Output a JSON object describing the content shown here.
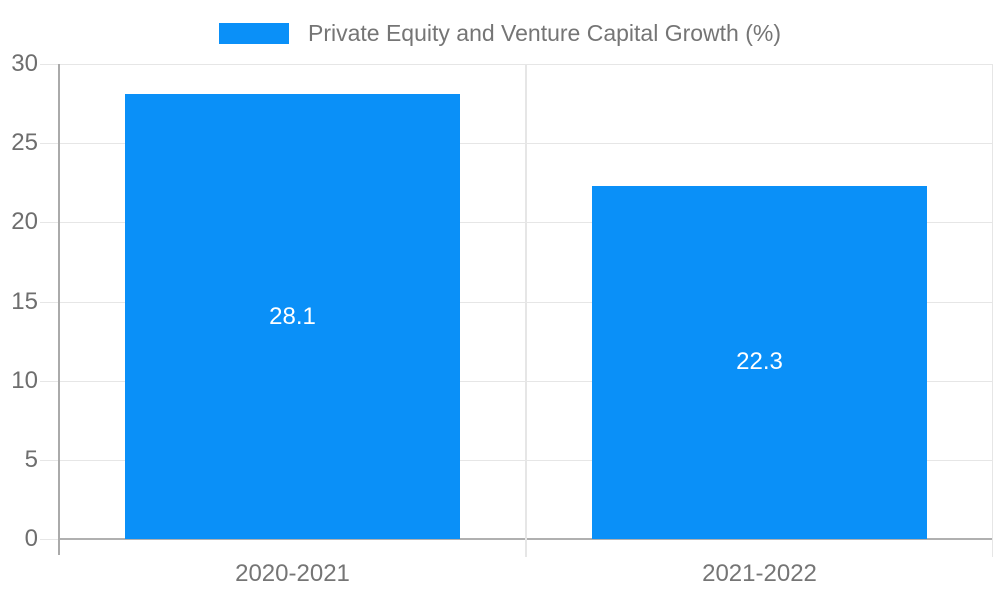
{
  "legend": {
    "label": "Private Equity and Venture Capital Growth (%)"
  },
  "colors": {
    "bar": "#0a90f8",
    "gridline": "#e6e6e6",
    "axis_line": "#aaaaaa",
    "baseline": "#b0b0b0",
    "ytick_label": "#6e6e6e",
    "xtick_label": "#757575",
    "data_label": "#ffffff",
    "background": "#ffffff"
  },
  "chart_data": {
    "type": "bar",
    "title": "",
    "xlabel": "",
    "ylabel": "",
    "categories": [
      "2020-2021",
      "2021-2022"
    ],
    "series": [
      {
        "name": "Private Equity and Venture Capital Growth (%)",
        "values": [
          28.1,
          22.3
        ],
        "labels": [
          "28.1",
          "22.3"
        ],
        "color": "#0a90f8"
      }
    ],
    "ylim": [
      0,
      30
    ],
    "yticks": [
      0,
      5,
      10,
      15,
      20,
      25,
      30
    ],
    "grid": true,
    "legend_position": "top"
  }
}
